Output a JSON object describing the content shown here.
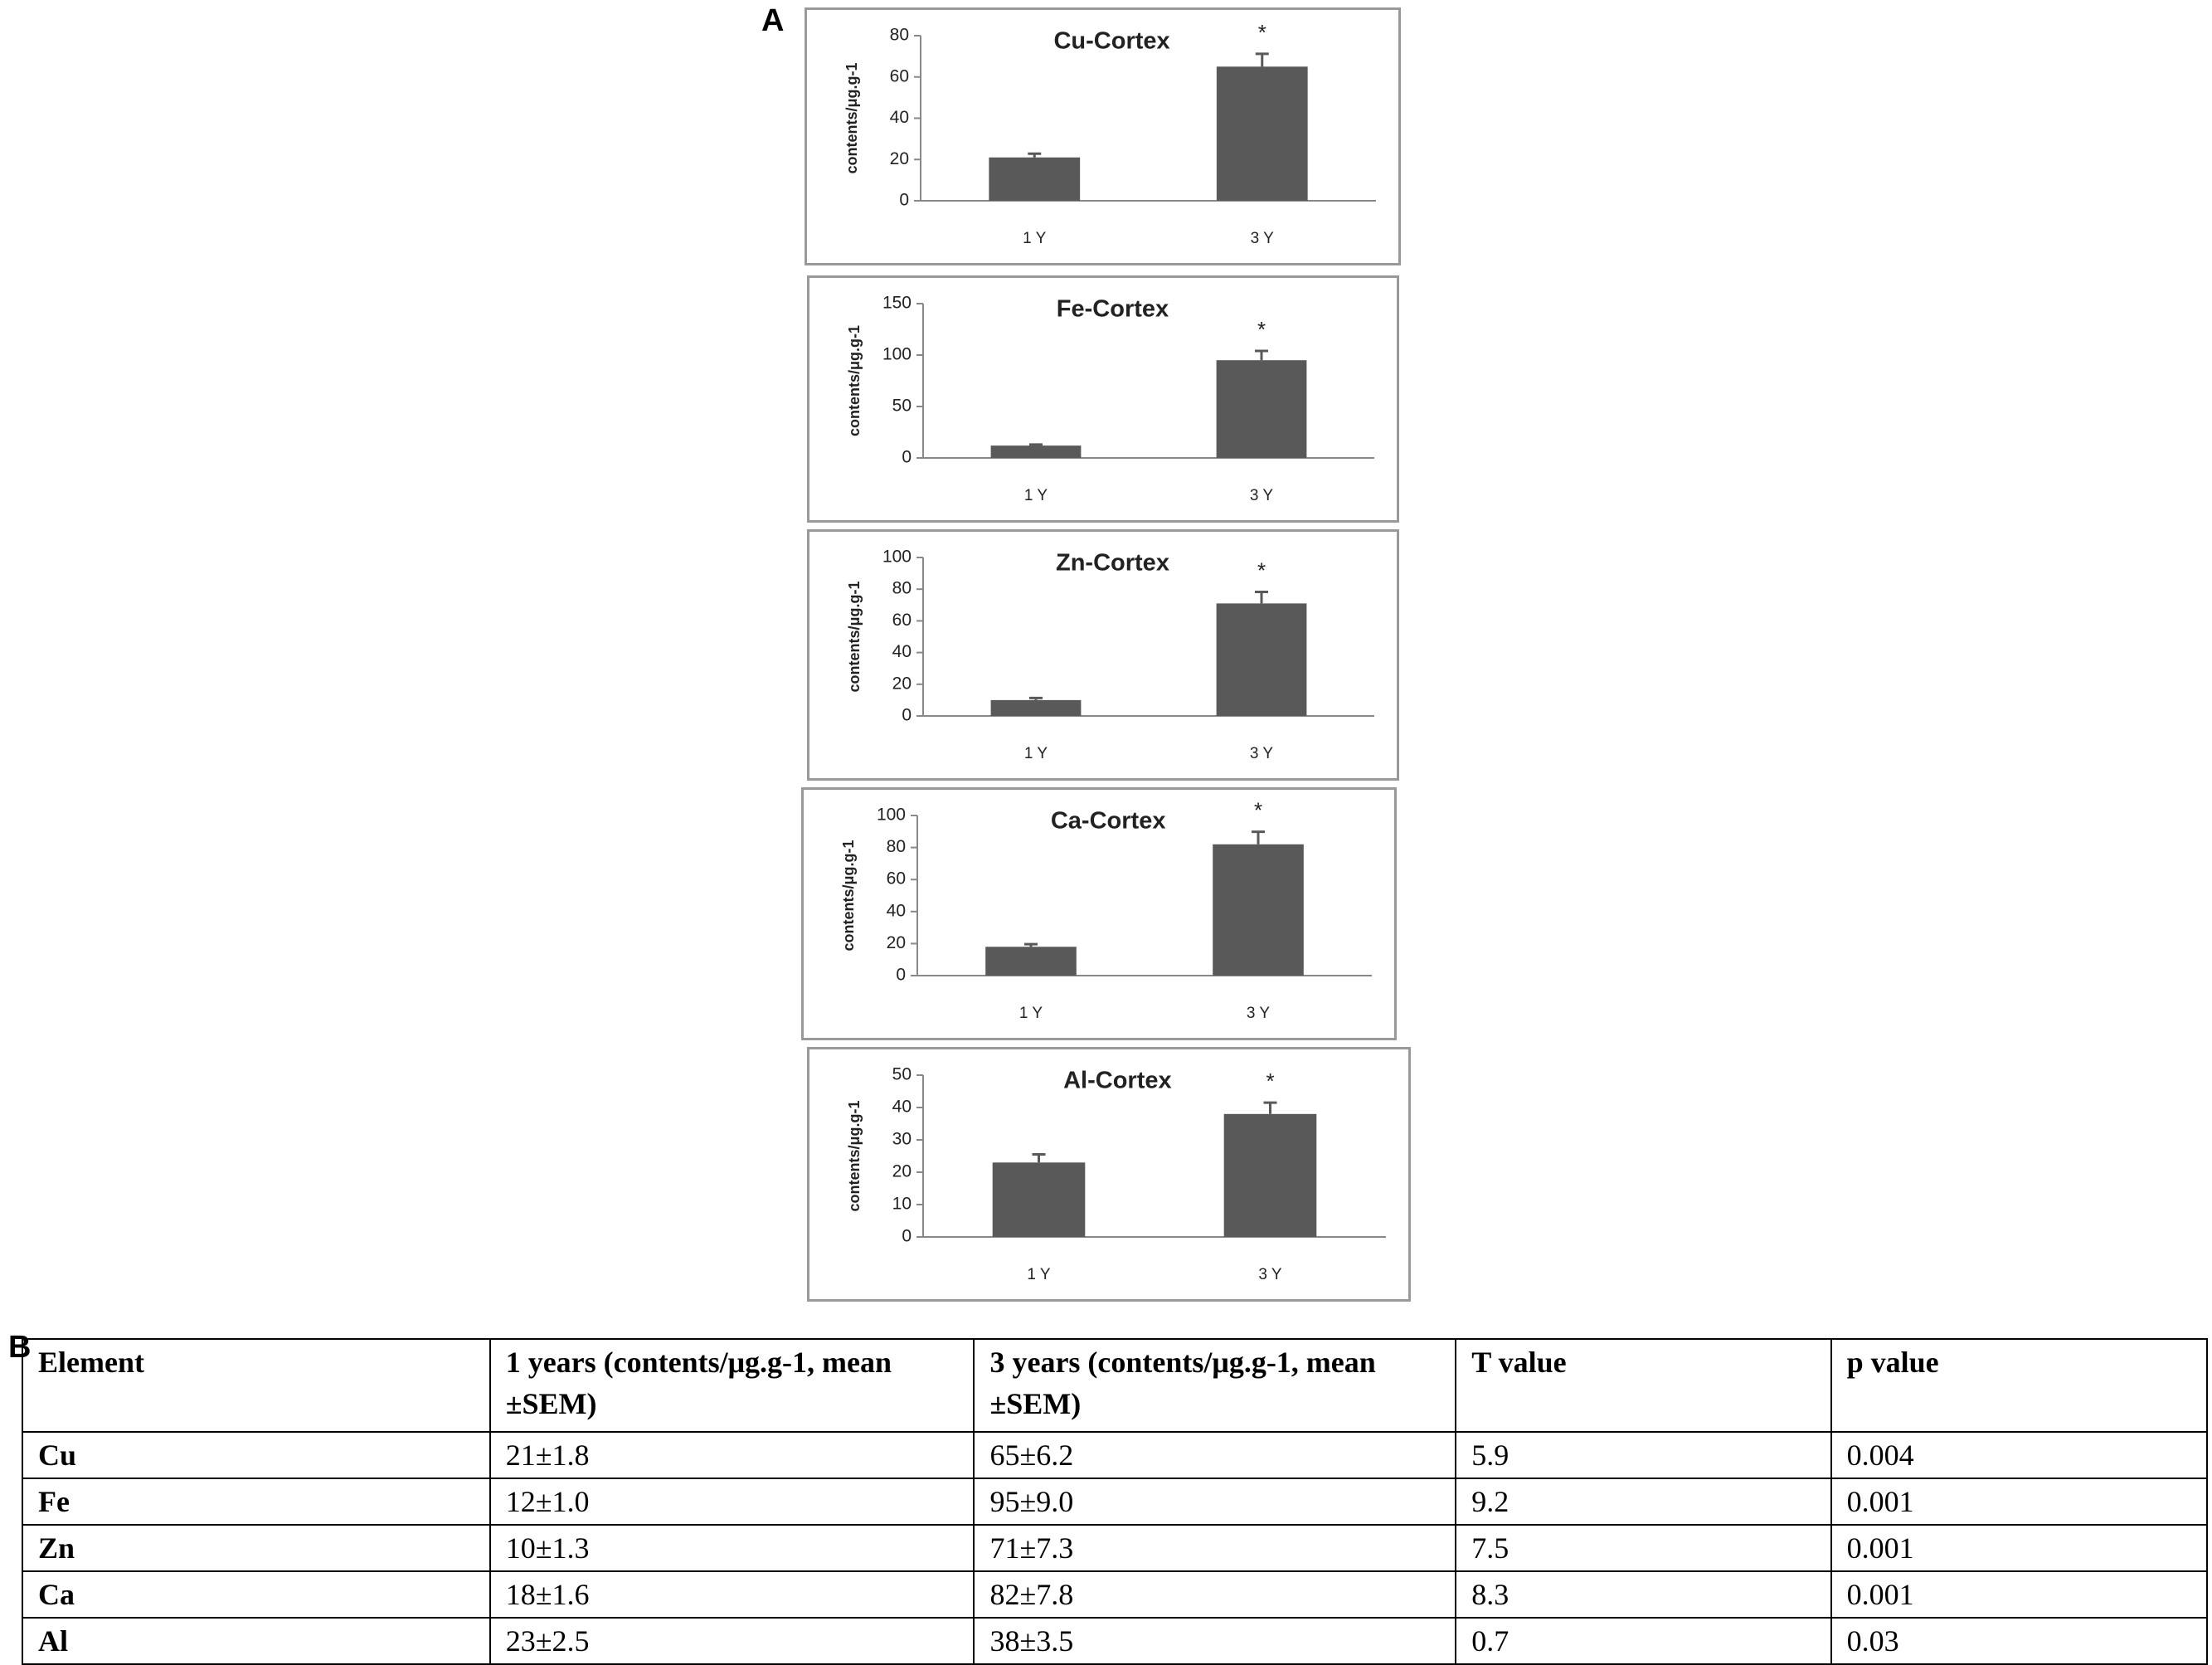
{
  "panel_a_label": "A",
  "chart_data": [
    {
      "type": "bar",
      "title": "Cu-Cortex",
      "ylabel": "contents/μg.g-1",
      "categories": [
        "1 Y",
        "3 Y"
      ],
      "values": [
        21,
        65
      ],
      "errors": [
        1.8,
        6.2
      ],
      "annotation": "*",
      "color": "#595959",
      "ylim": [
        0,
        80
      ],
      "yticks": [
        0,
        20,
        40,
        60,
        80
      ],
      "grid": false
    },
    {
      "type": "bar",
      "title": "Fe-Cortex",
      "ylabel": "contents/μg.g-1",
      "categories": [
        "1 Y",
        "3 Y"
      ],
      "values": [
        12,
        95
      ],
      "errors": [
        1.0,
        9.0
      ],
      "annotation": "*",
      "color": "#595959",
      "ylim": [
        0,
        150
      ],
      "yticks": [
        0,
        50,
        100,
        150
      ],
      "grid": false
    },
    {
      "type": "bar",
      "title": "Zn-Cortex",
      "ylabel": "contents/μg.g-1",
      "categories": [
        "1 Y",
        "3 Y"
      ],
      "values": [
        10,
        71
      ],
      "errors": [
        1.3,
        7.3
      ],
      "annotation": "*",
      "color": "#595959",
      "ylim": [
        0,
        100
      ],
      "yticks": [
        0,
        20,
        40,
        60,
        80,
        100
      ],
      "grid": false
    },
    {
      "type": "bar",
      "title": "Ca-Cortex",
      "ylabel": "contents/μg.g-1",
      "categories": [
        "1 Y",
        "3 Y"
      ],
      "values": [
        18,
        82
      ],
      "errors": [
        1.6,
        7.8
      ],
      "annotation": "*",
      "color": "#595959",
      "ylim": [
        0,
        100
      ],
      "yticks": [
        0,
        20,
        40,
        60,
        80,
        100
      ],
      "grid": false
    },
    {
      "type": "bar",
      "title": "Al-Cortex",
      "ylabel": "contents/μg.g-1",
      "categories": [
        "1 Y",
        "3 Y"
      ],
      "values": [
        23,
        38
      ],
      "errors": [
        2.5,
        3.5
      ],
      "annotation": "*",
      "color": "#595959",
      "ylim": [
        0,
        50
      ],
      "yticks": [
        0,
        10,
        20,
        30,
        40,
        50
      ],
      "grid": false
    }
  ],
  "panel_b_label": "B",
  "table": {
    "header": [
      "Element",
      "1 years (contents/μg.g-1, mean ±SEM)",
      "3 years (contents/μg.g-1, mean ±SEM)",
      "T value",
      "p value"
    ],
    "rows": [
      [
        "Cu",
        "21±1.8",
        "65±6.2",
        "5.9",
        "0.004"
      ],
      [
        "Fe",
        "12±1.0",
        "95±9.0",
        "9.2",
        "0.001"
      ],
      [
        "Zn",
        "10±1.3",
        "71±7.3",
        "7.5",
        "0.001"
      ],
      [
        "Ca",
        "18±1.6",
        "82±7.8",
        "8.3",
        "0.001"
      ],
      [
        "Al",
        "23±2.5",
        "38±3.5",
        "0.7",
        "0.03"
      ]
    ]
  }
}
